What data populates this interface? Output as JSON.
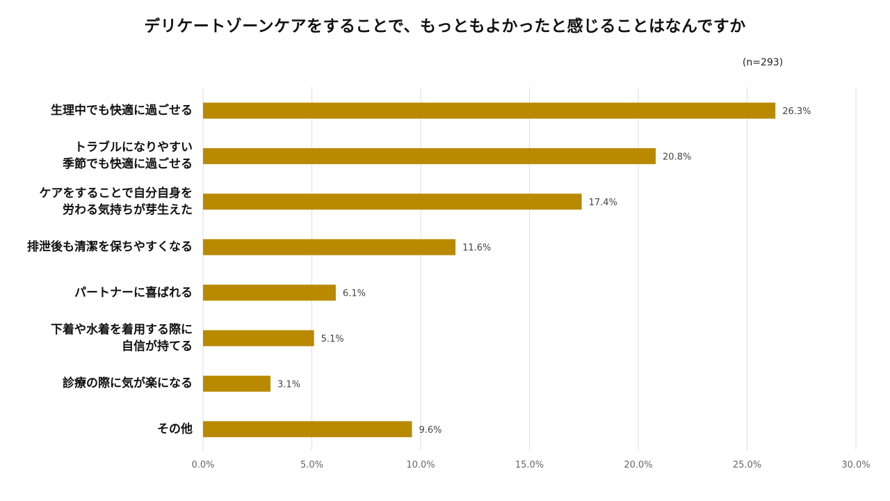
{
  "header": {
    "title": "デリケートゾーンケアをすることで、もっともよかったと感じることはなんですか",
    "sample_size": "(n=293)"
  },
  "colors": {
    "bar": "#B98A00",
    "grid": "#DDDDDD",
    "value_text": "#444444",
    "tick_text": "#666666"
  },
  "chart_data": {
    "type": "bar",
    "orientation": "horizontal",
    "title": "デリケートゾーンケアをすることで、もっともよかったと感じることはなんですか",
    "categories": [
      "生理中でも快適に過ごせる",
      "トラブルになりやすい\n季節でも快適に過ごせる",
      "ケアをすることで自分自身を\n労わる気持ちが芽生えた",
      "排泄後も清潔を保ちやすくなる",
      "パートナーに喜ばれる",
      "下着や水着を着用する際に\n自信が持てる",
      "診療の際に気が楽になる",
      "その他"
    ],
    "values": [
      26.3,
      20.8,
      17.4,
      11.6,
      6.1,
      5.1,
      3.1,
      9.6
    ],
    "value_labels": [
      "26.3%",
      "20.8%",
      "17.4%",
      "11.6%",
      "6.1%",
      "5.1%",
      "3.1%",
      "9.6%"
    ],
    "xlim": [
      0,
      30
    ],
    "xticks": [
      0,
      5,
      10,
      15,
      20,
      25,
      30
    ],
    "xtick_labels": [
      "0.0%",
      "5.0%",
      "10.0%",
      "15.0%",
      "20.0%",
      "25.0%",
      "30.0%"
    ],
    "xlabel": "",
    "ylabel": "",
    "grid": true,
    "legend": "none"
  }
}
